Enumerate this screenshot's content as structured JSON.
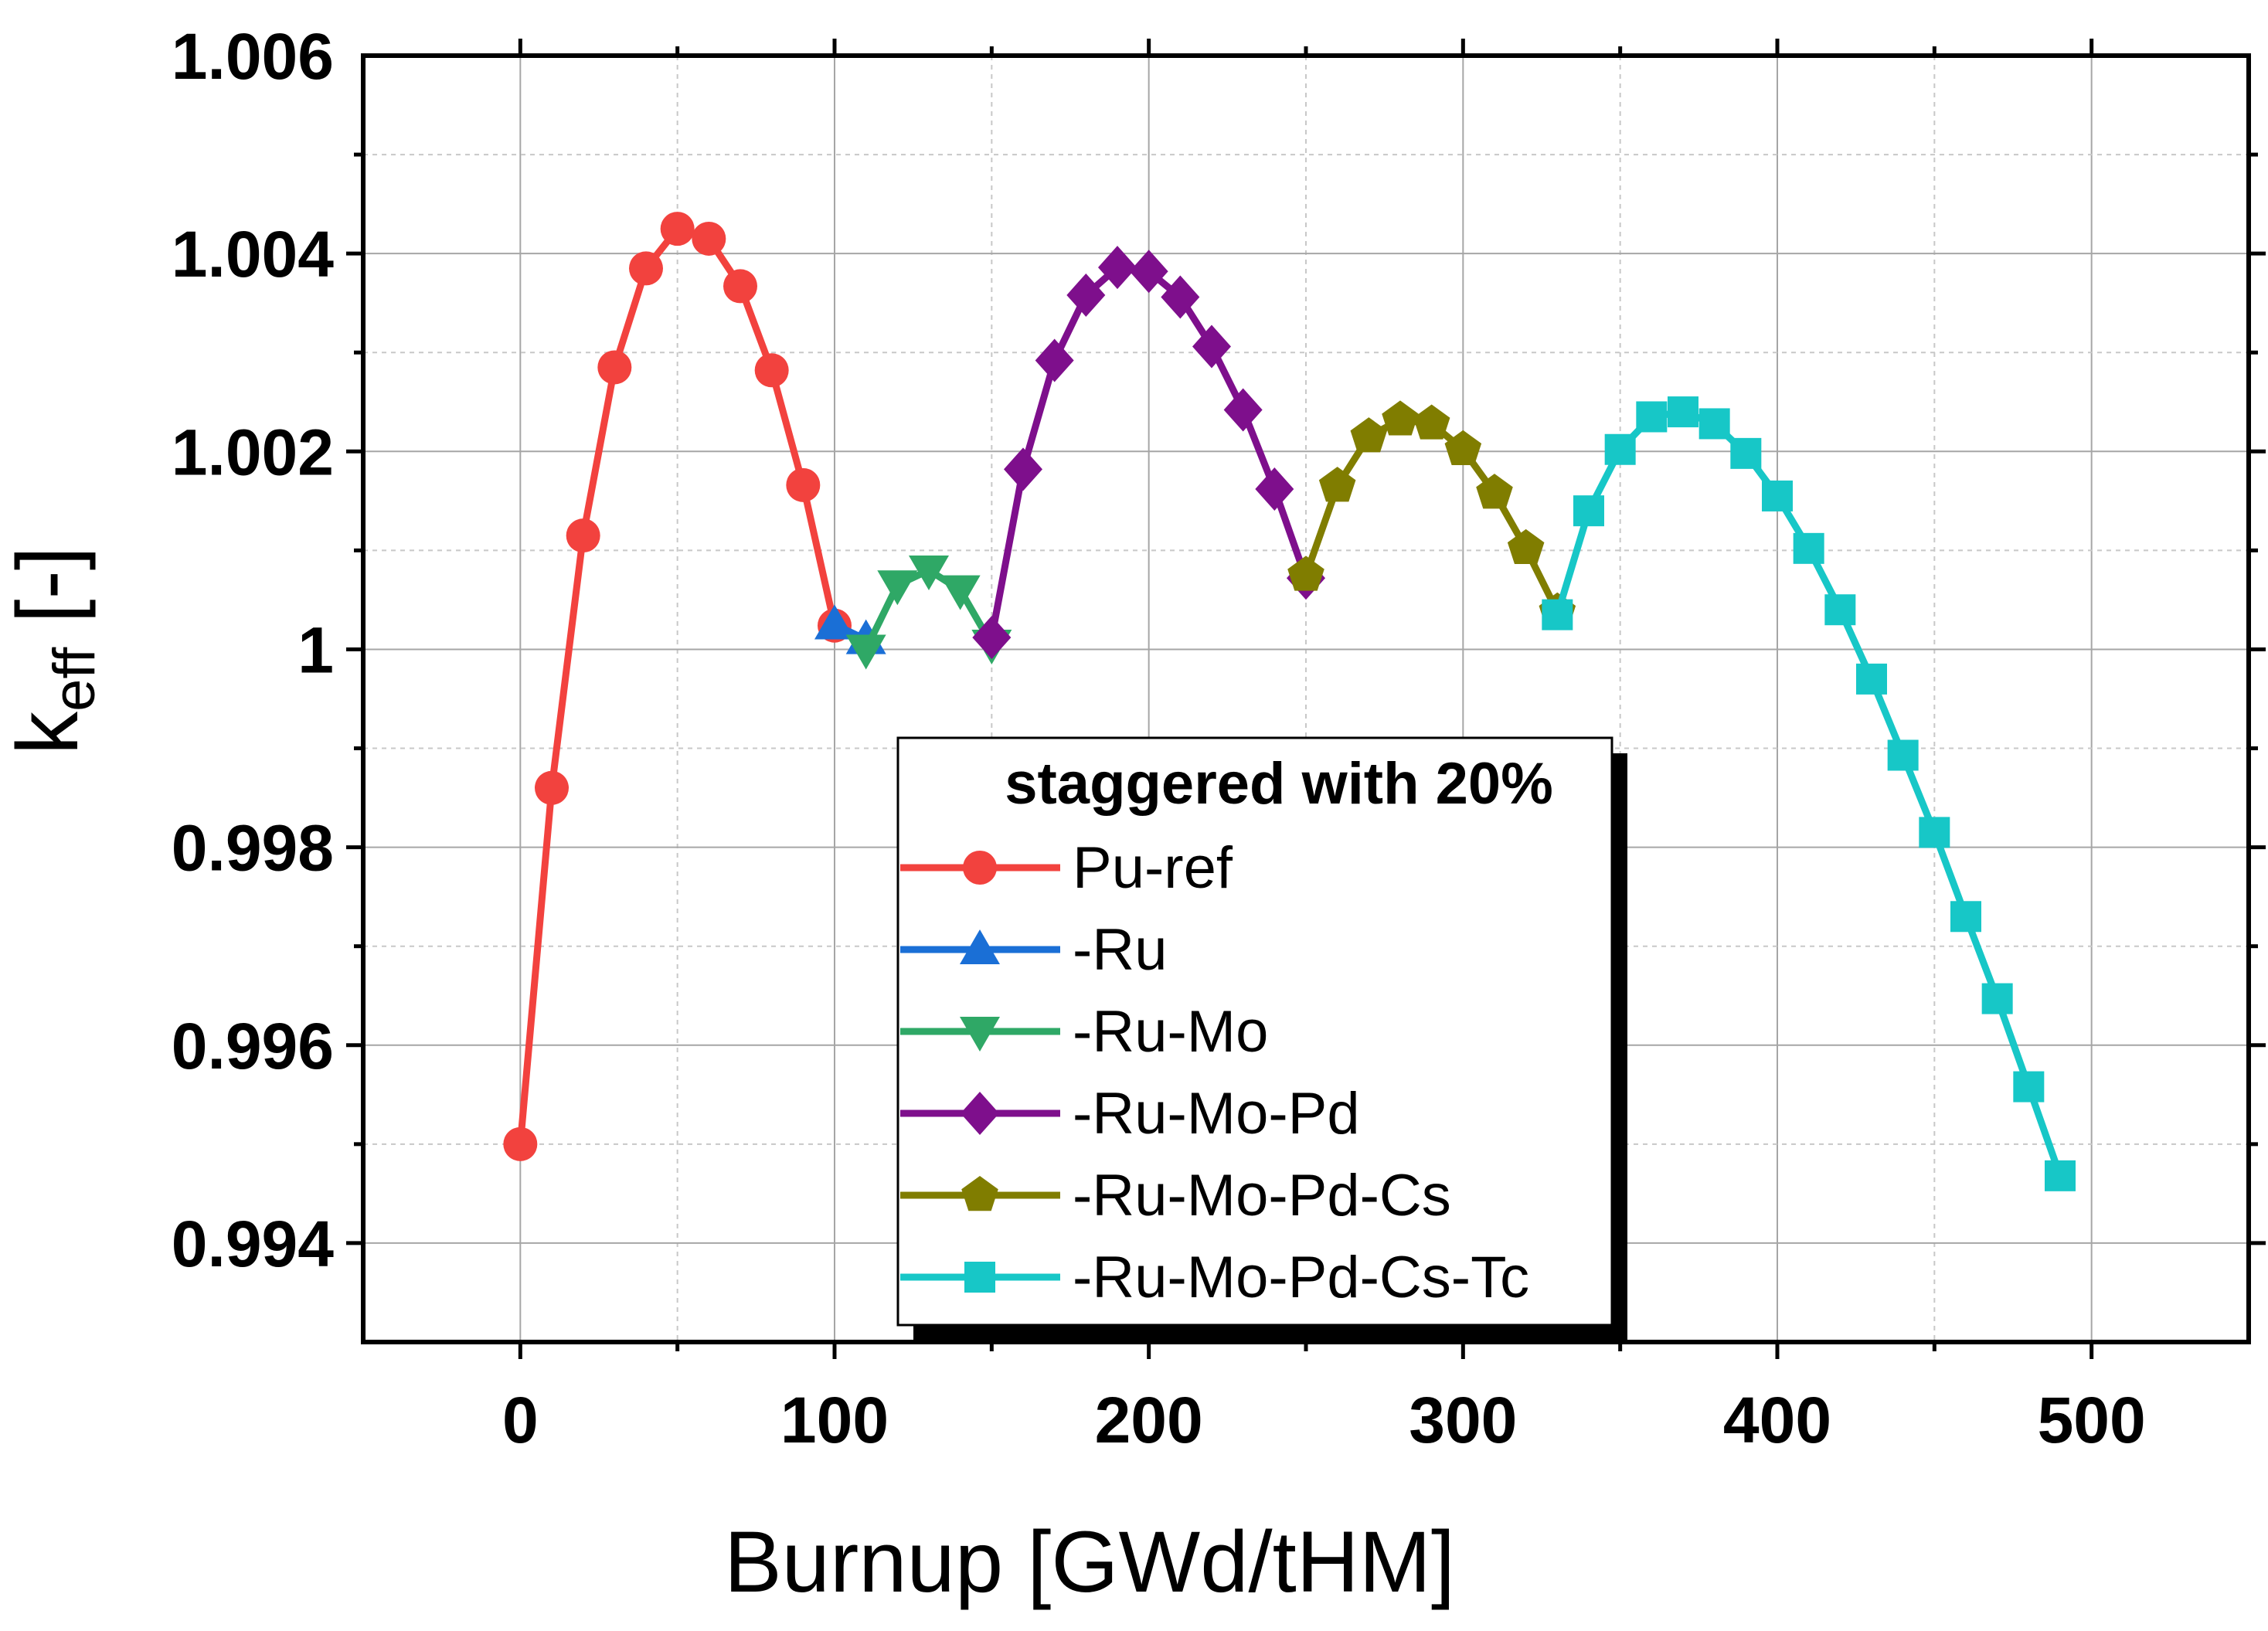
{
  "chart_data": {
    "type": "line",
    "xlabel": "Burnup [GWd/tHM]",
    "ylabel": {
      "main": "k",
      "subscript": "eff",
      "unit": " [-]"
    },
    "xlim": [
      -50,
      550
    ],
    "ylim": [
      0.993,
      1.006
    ],
    "xticks": [
      0,
      100,
      200,
      300,
      400,
      500
    ],
    "xtick_labels": [
      "0",
      "100",
      "200",
      "300",
      "400",
      "500"
    ],
    "yticks": [
      0.994,
      0.996,
      0.998,
      1.0,
      1.002,
      1.004,
      1.006
    ],
    "ytick_labels": [
      "0.994",
      "0.996",
      "0.998",
      "1",
      "1.002",
      "1.004",
      "1.006"
    ],
    "grid": true,
    "legend": {
      "title": "staggered with 20%",
      "position": "center"
    },
    "series": [
      {
        "name": "Pu-ref",
        "color": "#f2423e",
        "marker": "circle",
        "x": [
          0,
          10,
          20,
          30,
          40,
          50,
          60,
          70,
          80,
          90,
          100
        ],
        "y": [
          0.995,
          0.9986,
          1.00115,
          1.00285,
          1.00385,
          1.00425,
          1.00415,
          1.00367,
          1.00282,
          1.00166,
          1.00024
        ]
      },
      {
        "name": "-Ru",
        "color": "#1a6fd6",
        "marker": "triangle-up",
        "x": [
          100,
          110
        ],
        "y": [
          1.00025,
          1.0001
        ]
      },
      {
        "name": "-Ru-Mo",
        "color": "#2fa866",
        "marker": "triangle-down",
        "x": [
          110,
          120,
          130,
          140,
          150
        ],
        "y": [
          1.0,
          1.00065,
          1.0008,
          1.0006,
          1.00005
        ]
      },
      {
        "name": "-Ru-Mo-Pd",
        "color": "#7e0f8c",
        "marker": "diamond",
        "x": [
          150,
          160,
          170,
          180,
          190,
          200,
          210,
          220,
          230,
          240,
          250
        ],
        "y": [
          1.00012,
          1.00182,
          1.00292,
          1.00358,
          1.00386,
          1.00382,
          1.00356,
          1.00306,
          1.00242,
          1.00162,
          1.00072
        ]
      },
      {
        "name": "-Ru-Mo-Pd-Cs",
        "color": "#807d00",
        "marker": "pentagon",
        "x": [
          250,
          260,
          270,
          280,
          290,
          300,
          310,
          320,
          330
        ],
        "y": [
          1.00075,
          1.00165,
          1.00215,
          1.00232,
          1.00228,
          1.00202,
          1.00158,
          1.00102,
          1.00038
        ]
      },
      {
        "name": "-Ru-Mo-Pd-Cs-Tc",
        "color": "#17c7c7",
        "marker": "square",
        "x": [
          330,
          340,
          350,
          360,
          370,
          380,
          390,
          400,
          410,
          420,
          430,
          440,
          450,
          460,
          470,
          480,
          490
        ],
        "y": [
          1.00035,
          1.0014,
          1.00202,
          1.00235,
          1.0024,
          1.00228,
          1.00198,
          1.00155,
          1.00102,
          1.0004,
          0.9997,
          0.99893,
          0.99815,
          0.9973,
          0.99647,
          0.99558,
          0.99468
        ]
      }
    ]
  }
}
